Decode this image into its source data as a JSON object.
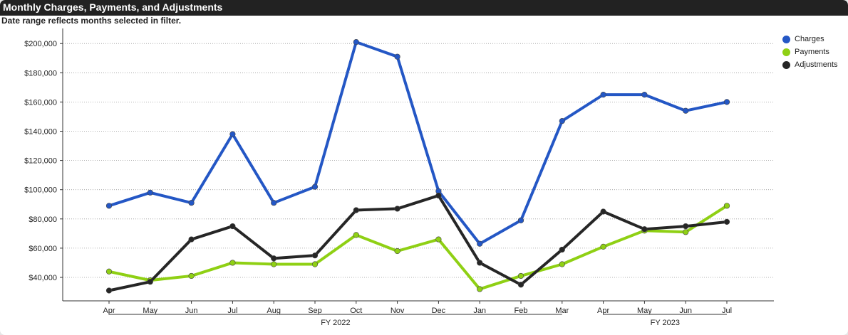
{
  "title": "Monthly Charges, Payments, and Adjustments",
  "subtitle": "Date range reflects months selected in filter.",
  "colors": {
    "charges": "#2457c5",
    "payments": "#8fd014",
    "adjustments": "#262626"
  },
  "chart_data": {
    "type": "line",
    "title": "Monthly Charges, Payments, and Adjustments",
    "categories": [
      "Apr",
      "May",
      "Jun",
      "Jul",
      "Aug",
      "Sep",
      "Oct",
      "Nov",
      "Dec",
      "Jan",
      "Feb",
      "Mar",
      "Apr",
      "May",
      "Jun",
      "Jul"
    ],
    "fiscal_years": [
      {
        "label": "FY 2022",
        "start": 0,
        "end": 11
      },
      {
        "label": "FY 2023",
        "start": 12,
        "end": 15
      }
    ],
    "series": [
      {
        "name": "Charges",
        "color": "#2457c5",
        "values": [
          89000,
          98000,
          91000,
          138000,
          91000,
          102000,
          201000,
          191000,
          99000,
          63000,
          79000,
          147000,
          165000,
          165000,
          154000,
          160000
        ]
      },
      {
        "name": "Payments",
        "color": "#8fd014",
        "values": [
          44000,
          38000,
          41000,
          50000,
          49000,
          49000,
          69000,
          58000,
          66000,
          32000,
          41000,
          49000,
          61000,
          72000,
          71000,
          89000
        ]
      },
      {
        "name": "Adjustments",
        "color": "#262626",
        "values": [
          31000,
          37000,
          66000,
          75000,
          53000,
          55000,
          86000,
          87000,
          96000,
          50000,
          35000,
          59000,
          85000,
          73000,
          75000,
          78000
        ]
      }
    ],
    "yticks": [
      40000,
      60000,
      80000,
      100000,
      120000,
      140000,
      160000,
      180000,
      200000
    ],
    "ytick_labels": [
      "$40,000",
      "$60,000",
      "$80,000",
      "$100,000",
      "$120,000",
      "$140,000",
      "$160,000",
      "$180,000",
      "$200,000"
    ],
    "ylim": [
      25000,
      205000
    ],
    "grid": true,
    "legend": "top-right"
  }
}
